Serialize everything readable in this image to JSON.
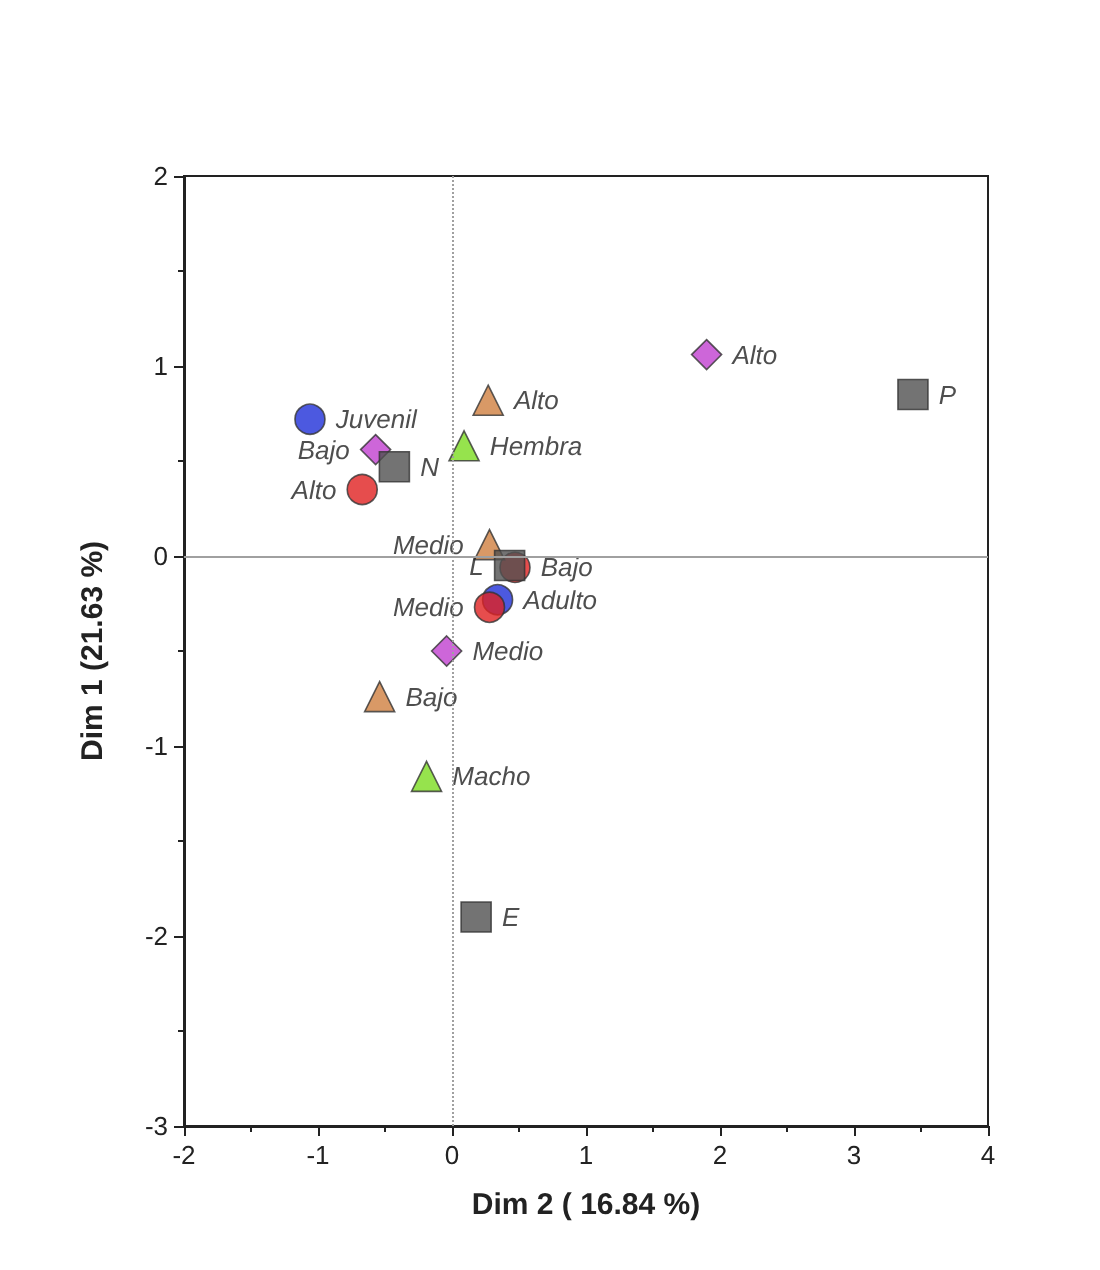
{
  "chart_data": {
    "type": "scatter",
    "xlabel": "Dim 2 ( 16.84 %)",
    "ylabel": "Dim 1 (21.63 %)",
    "xlim": [
      -2,
      4
    ],
    "xticks": [
      -2,
      -1,
      0,
      1,
      2,
      3,
      4
    ],
    "ylim": [
      -3,
      2
    ],
    "yticks": [
      -3,
      -2,
      -1,
      0,
      1,
      2
    ],
    "grid": false,
    "ref_lines": [
      {
        "axis": "x",
        "value": 0,
        "color": "#a0a0a0",
        "line_style": "dotted"
      },
      {
        "axis": "y",
        "value": 0,
        "color": "#a0a0a0"
      }
    ],
    "series": [
      {
        "color": "#1f2fd8",
        "marker": "circle",
        "x": [
          -1.06,
          0.34
        ],
        "values": [
          0.72,
          -0.23
        ],
        "value_labels": [
          "Juvenil",
          "Adulto"
        ]
      },
      {
        "color": "#e02020",
        "marker": "circle",
        "x": [
          -0.67,
          0.28,
          0.47
        ],
        "values": [
          0.35,
          -0.27,
          -0.06
        ],
        "value_labels": [
          "Alto",
          "Medio",
          "Bajo"
        ]
      },
      {
        "color": "#c040d0",
        "marker": "diamond",
        "x": [
          1.9,
          -0.57,
          -0.04
        ],
        "values": [
          1.06,
          0.56,
          -0.5
        ],
        "value_labels": [
          "Alto",
          "Bajo",
          "Medio"
        ]
      },
      {
        "color": "#d08040",
        "marker": "triangle",
        "x": [
          0.27,
          0.28,
          -0.54
        ],
        "values": [
          0.82,
          0.06,
          -0.74
        ],
        "value_labels": [
          "Alto",
          "Medio",
          "Bajo"
        ]
      },
      {
        "color": "#7cdc20",
        "marker": "triangle",
        "x": [
          0.09,
          -0.19
        ],
        "values": [
          0.58,
          -1.16
        ],
        "value_labels": [
          "Hembra",
          "Macho"
        ]
      },
      {
        "color": "#505050",
        "marker": "square",
        "x": [
          -0.43,
          3.44,
          0.43,
          0.18
        ],
        "values": [
          0.47,
          0.85,
          -0.05,
          -1.9
        ],
        "value_labels": [
          "N",
          "P",
          "L",
          "E"
        ]
      }
    ]
  }
}
